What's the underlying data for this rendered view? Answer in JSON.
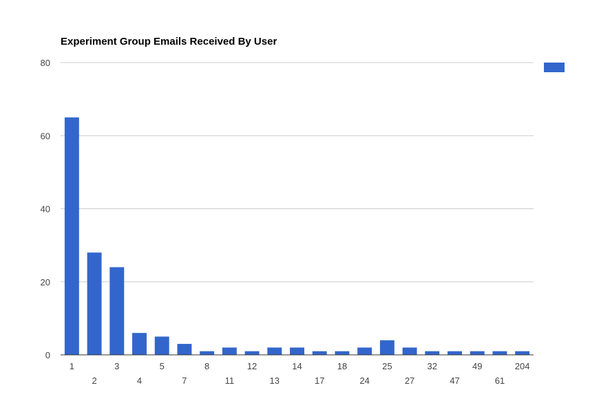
{
  "chart_data": {
    "type": "bar",
    "title": "Experiment Group Emails Received By User",
    "xlabel": "",
    "ylabel": "",
    "categories": [
      "1",
      "2",
      "3",
      "4",
      "5",
      "7",
      "8",
      "11",
      "12",
      "13",
      "14",
      "17",
      "18",
      "24",
      "25",
      "27",
      "32",
      "47",
      "49",
      "61",
      "204"
    ],
    "series": [
      {
        "name": "",
        "values": [
          65,
          28,
          24,
          6,
          5,
          3,
          1,
          2,
          1,
          2,
          2,
          1,
          1,
          2,
          4,
          2,
          1,
          1,
          1,
          1,
          1
        ]
      }
    ],
    "ylim": [
      0,
      80
    ],
    "yticks": [
      "0",
      "20",
      "40",
      "60",
      "80"
    ],
    "grid": true,
    "legend_position": "top-right",
    "colors": {
      "bar": "#3366cc",
      "grid": "#cccccc",
      "axis": "#333333",
      "tick_text": "#444444",
      "title": "#000000"
    }
  }
}
